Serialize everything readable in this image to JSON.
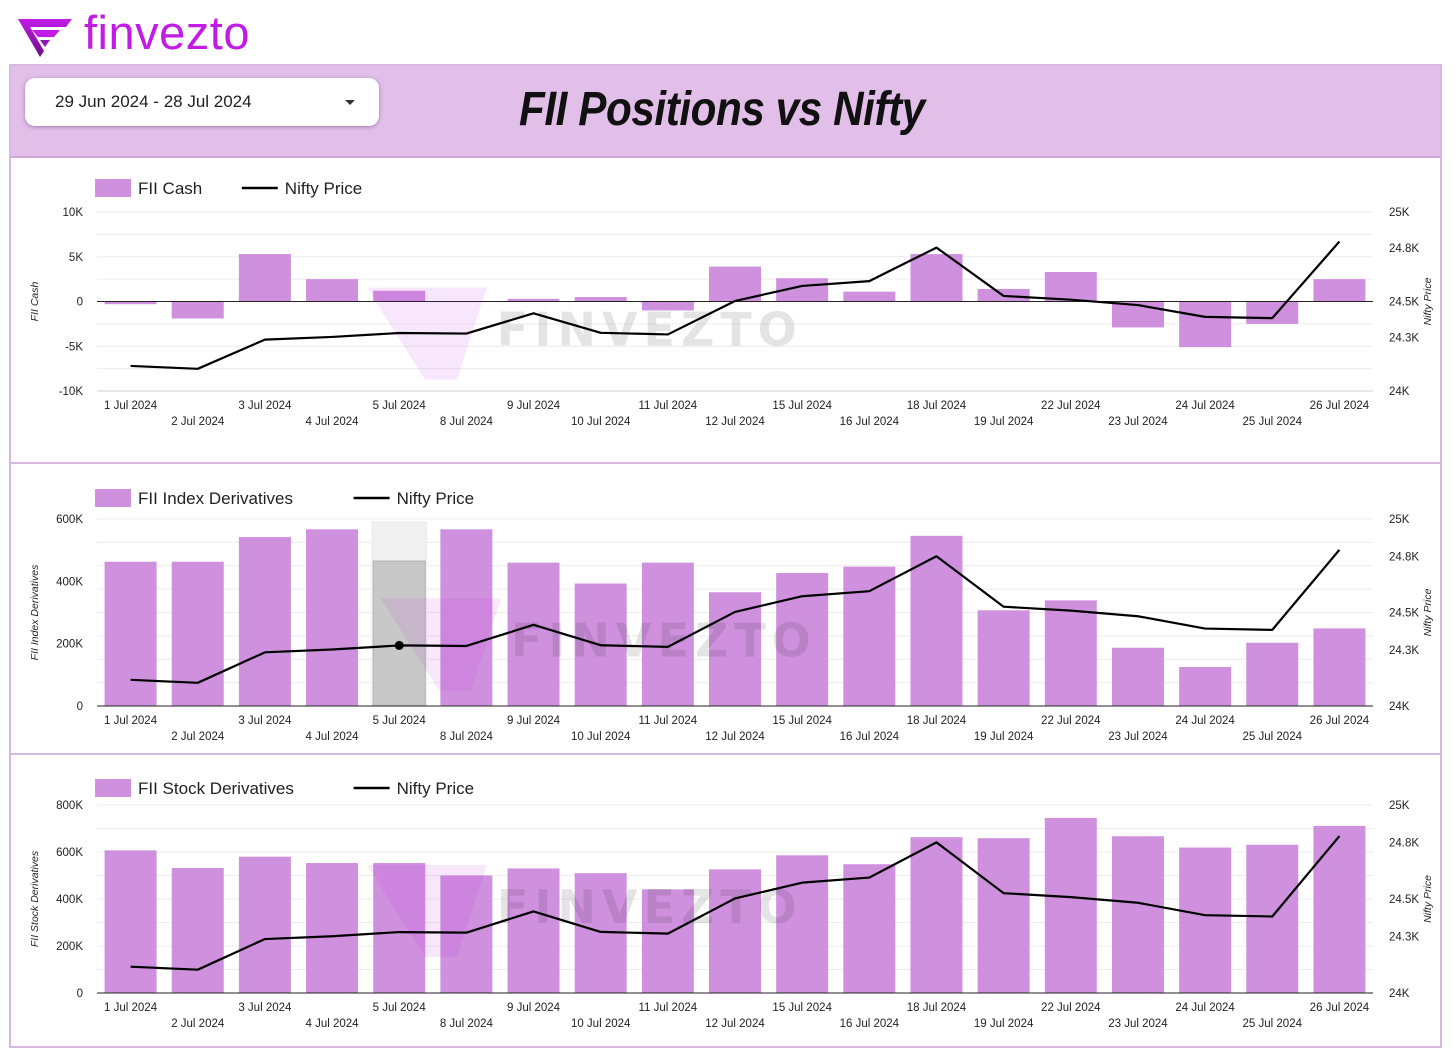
{
  "brand": {
    "name": "finvezto",
    "color": "#c21be6"
  },
  "header": {
    "date_range": "29 Jun 2024 - 28 Jul 2024",
    "title": "FII Positions vs Nifty",
    "background": "#e2bfe8"
  },
  "colors": {
    "bar": "#cf91de",
    "line": "#000000",
    "watermark": "#c21be6"
  },
  "watermark_text": "FINVEZTO",
  "chart_data": [
    {
      "type": "bar",
      "legend": {
        "bar_label": "FII Cash",
        "line_label": "Nifty Price"
      },
      "y_left_title": "FII Cash",
      "y_right_title": "Nifty Price",
      "y_left_ticks": [
        "10K",
        "5K",
        "0",
        "-5K",
        "-10K"
      ],
      "y_right_ticks": [
        "25K",
        "24.8K",
        "24.5K",
        "24.3K",
        "24K"
      ],
      "ylim": [
        -10000,
        10000
      ],
      "y2lim": [
        24000,
        25000
      ],
      "categories": [
        "1 Jul 2024",
        "2 Jul 2024",
        "3 Jul 2024",
        "4 Jul 2024",
        "5 Jul 2024",
        "8 Jul 2024",
        "9 Jul 2024",
        "10 Jul 2024",
        "11 Jul 2024",
        "12 Jul 2024",
        "15 Jul 2024",
        "16 Jul 2024",
        "18 Jul 2024",
        "19 Jul 2024",
        "22 Jul 2024",
        "23 Jul 2024",
        "24 Jul 2024",
        "25 Jul 2024",
        "26 Jul 2024"
      ],
      "series": [
        {
          "name": "FII Cash",
          "kind": "bar",
          "values": [
            -300,
            -1900,
            5300,
            2500,
            1200,
            0,
            300,
            500,
            -1000,
            3900,
            2600,
            1100,
            5300,
            1400,
            3300,
            -2900,
            -5100,
            -2500,
            2500
          ]
        },
        {
          "name": "Nifty Price",
          "kind": "line",
          "values": [
            24140,
            24124,
            24287,
            24302,
            24324,
            24321,
            24434,
            24325,
            24316,
            24503,
            24587,
            24614,
            24801,
            24531,
            24510,
            24480,
            24414,
            24407,
            24835
          ]
        }
      ]
    },
    {
      "type": "bar",
      "legend": {
        "bar_label": "FII Index Derivatives",
        "line_label": "Nifty Price"
      },
      "y_left_title": "FII Index Derivatives",
      "y_right_title": "Nifty Price",
      "y_left_ticks": [
        "600K",
        "400K",
        "200K",
        "0"
      ],
      "y_right_ticks": [
        "25K",
        "24.8K",
        "24.5K",
        "24.3K",
        "24K"
      ],
      "ylim": [
        0,
        600000
      ],
      "y2lim": [
        24000,
        25000
      ],
      "categories": [
        "1 Jul 2024",
        "2 Jul 2024",
        "3 Jul 2024",
        "4 Jul 2024",
        "5 Jul 2024",
        "8 Jul 2024",
        "9 Jul 2024",
        "10 Jul 2024",
        "11 Jul 2024",
        "12 Jul 2024",
        "15 Jul 2024",
        "16 Jul 2024",
        "18 Jul 2024",
        "19 Jul 2024",
        "22 Jul 2024",
        "23 Jul 2024",
        "24 Jul 2024",
        "25 Jul 2024",
        "26 Jul 2024"
      ],
      "highlighted_category": "5 Jul 2024",
      "series": [
        {
          "name": "FII Index Derivatives",
          "kind": "bar",
          "values": [
            463000,
            463000,
            542000,
            567000,
            465000,
            567000,
            460000,
            393000,
            460000,
            365000,
            427000,
            447000,
            546000,
            307000,
            339000,
            187000,
            125000,
            203000,
            249000
          ]
        },
        {
          "name": "Nifty Price",
          "kind": "line",
          "values": [
            24140,
            24124,
            24287,
            24302,
            24324,
            24321,
            24434,
            24325,
            24316,
            24503,
            24587,
            24614,
            24801,
            24531,
            24510,
            24480,
            24414,
            24407,
            24835
          ]
        }
      ]
    },
    {
      "type": "bar",
      "legend": {
        "bar_label": "FII Stock Derivatives",
        "line_label": "Nifty Price"
      },
      "y_left_title": "FII Stock Derivatives",
      "y_right_title": "Nifty Price",
      "y_left_ticks": [
        "800K",
        "600K",
        "400K",
        "200K",
        "0"
      ],
      "y_right_ticks": [
        "25K",
        "24.8K",
        "24.5K",
        "24.3K",
        "24K"
      ],
      "ylim": [
        0,
        800000
      ],
      "y2lim": [
        24000,
        25000
      ],
      "categories": [
        "1 Jul 2024",
        "2 Jul 2024",
        "3 Jul 2024",
        "4 Jul 2024",
        "5 Jul 2024",
        "8 Jul 2024",
        "9 Jul 2024",
        "10 Jul 2024",
        "11 Jul 2024",
        "12 Jul 2024",
        "15 Jul 2024",
        "16 Jul 2024",
        "18 Jul 2024",
        "19 Jul 2024",
        "22 Jul 2024",
        "23 Jul 2024",
        "24 Jul 2024",
        "25 Jul 2024",
        "26 Jul 2024"
      ],
      "series": [
        {
          "name": "FII Stock Derivatives",
          "kind": "bar",
          "values": [
            607000,
            532000,
            580000,
            553000,
            553000,
            500000,
            530000,
            510000,
            441000,
            526000,
            586000,
            548000,
            663000,
            659000,
            745000,
            667000,
            619000,
            631000,
            711000
          ]
        },
        {
          "name": "Nifty Price",
          "kind": "line",
          "values": [
            24140,
            24124,
            24287,
            24302,
            24324,
            24321,
            24434,
            24325,
            24316,
            24503,
            24587,
            24614,
            24801,
            24531,
            24510,
            24480,
            24414,
            24407,
            24835
          ]
        }
      ]
    }
  ]
}
